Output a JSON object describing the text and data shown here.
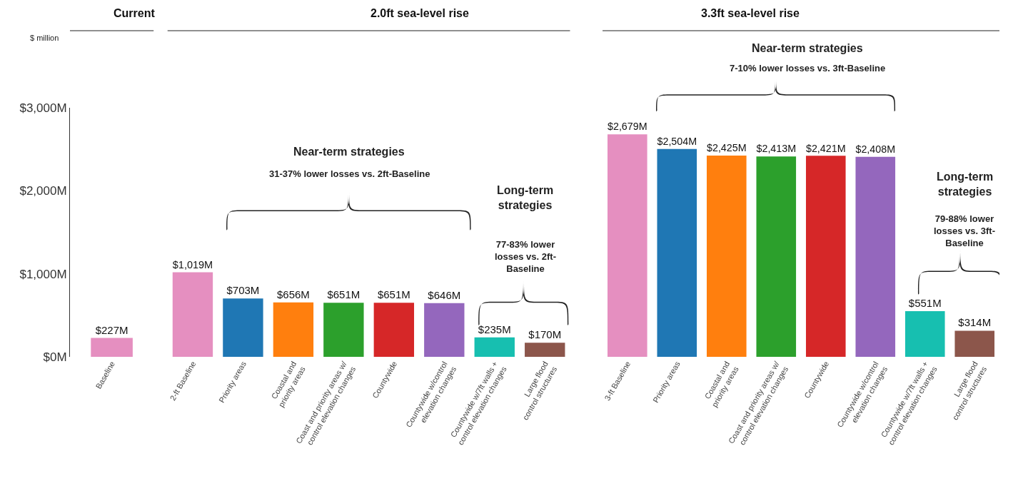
{
  "chart_data": [
    {
      "type": "bar",
      "title": "Current",
      "ylabel": "$ million",
      "categories": [
        "Baseline"
      ],
      "values": [
        227
      ],
      "colors": [
        "#e58fc0"
      ],
      "value_labels": [
        "$227M"
      ],
      "ylim": [
        0,
        3000
      ],
      "yticks": [
        {
          "value": 0,
          "label": "$0M"
        },
        {
          "value": 1000,
          "label": "$1,000M"
        },
        {
          "value": 2000,
          "label": "$2,000M"
        },
        {
          "value": 3000,
          "label": "$3,000M"
        }
      ]
    },
    {
      "type": "bar",
      "title": "2.0ft sea-level rise",
      "categories": [
        "2-ft Baseline",
        "Priority areas",
        "Coastal and priority areas",
        "Coast and priority areas w/ control elevation changes",
        "Countywide",
        "Countywide w/control elevation changes",
        "Countywide w/7ft walls + control elevation changes",
        "Large flood control structures"
      ],
      "values": [
        1019,
        703,
        656,
        651,
        651,
        646,
        235,
        170
      ],
      "colors": [
        "#e58fc0",
        "#1f77b4",
        "#ff7f0e",
        "#2ca02c",
        "#d62728",
        "#9467bd",
        "#17bfb0",
        "#8c564b"
      ],
      "value_labels": [
        "$1,019M",
        "$703M",
        "$656M",
        "$651M",
        "$651M",
        "$646M",
        "$235M",
        "$170M"
      ],
      "ylim": [
        0,
        3000
      ],
      "tick_labels": "x",
      "annotations": [
        "Near-term strategies",
        "31-37% lower losses vs. 2ft-Baseline",
        "Long-term strategies",
        "77-83% lower losses vs. 2ft-Baseline"
      ]
    },
    {
      "type": "bar",
      "title": "3.3ft sea-level rise",
      "categories": [
        "3-ft Baseline",
        "Priority areas",
        "Coastal and priority areas",
        "Coast and priority areas w/ control elevation changes",
        "Countywide",
        "Countywide w/control elevation changes",
        "Countywide w/7ft walls + control elevation changes",
        "Large flood control structures"
      ],
      "values": [
        2679,
        2504,
        2425,
        2413,
        2421,
        2408,
        551,
        314
      ],
      "colors": [
        "#e58fc0",
        "#1f77b4",
        "#ff7f0e",
        "#2ca02c",
        "#d62728",
        "#9467bd",
        "#17bfb0",
        "#8c564b"
      ],
      "value_labels": [
        "$2,679M",
        "$2,504M",
        "$2,425M",
        "$2,413M",
        "$2,421M",
        "$2,408M",
        "$551M",
        "$314M"
      ],
      "ylim": [
        0,
        3000
      ],
      "tick_labels": "x",
      "annotations": [
        "Near-term strategies",
        "7-10% lower losses vs. 3ft-Baseline",
        "Long-term strategies",
        "79-88% lower losses vs. 3ft-Baseline"
      ]
    }
  ]
}
